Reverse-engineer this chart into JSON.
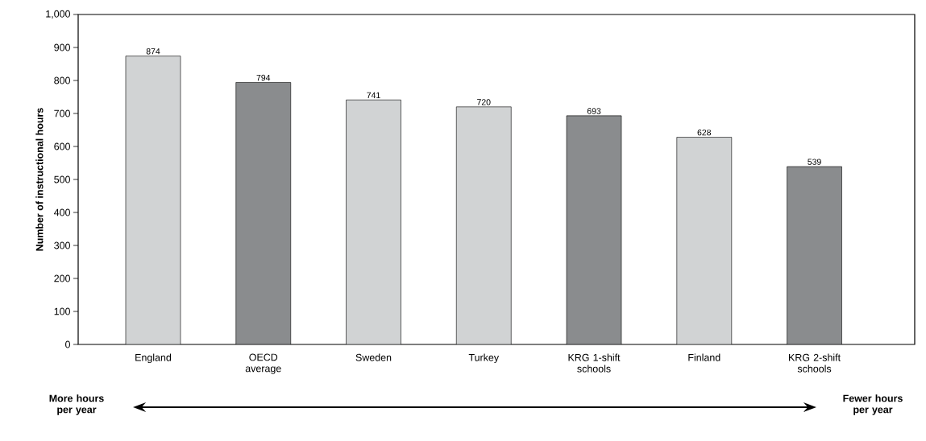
{
  "chart_data": {
    "type": "bar",
    "ylabel": "Number of instructional hours",
    "categories": [
      "England",
      "OECD average",
      "Sweden",
      "Turkey",
      "KRG 1-shift schools",
      "Finland",
      "KRG 2-shift schools"
    ],
    "values": [
      874,
      794,
      741,
      720,
      693,
      628,
      539
    ],
    "colors": [
      "#d1d3d4",
      "#8a8c8e",
      "#d1d3d4",
      "#d1d3d4",
      "#8a8c8e",
      "#d1d3d4",
      "#8a8c8e"
    ],
    "ylim": [
      0,
      1000
    ],
    "yticks": [
      0,
      100,
      200,
      300,
      400,
      500,
      600,
      700,
      800,
      900,
      {
        "value": 1000,
        "label": "1,000"
      }
    ],
    "data_labels": true,
    "annotations": [
      "More hours per year",
      "Fewer hours per year"
    ]
  }
}
